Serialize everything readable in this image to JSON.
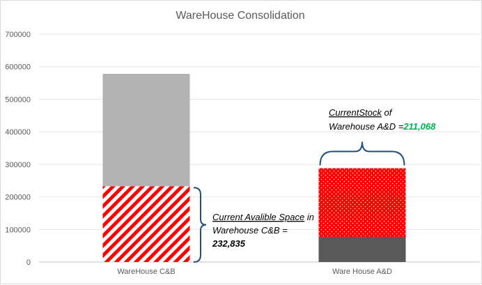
{
  "chart_data": {
    "type": "bar",
    "stacked": true,
    "title": "WareHouse Consolidation",
    "categories": [
      "WareHouse C&B",
      "Ware House A&D"
    ],
    "ylim": [
      0,
      700000
    ],
    "yticks": [
      0,
      100000,
      200000,
      300000,
      400000,
      500000,
      600000,
      700000
    ],
    "grid": true,
    "series": [
      {
        "values": [
          232835,
          0
        ],
        "color": "#ff0000",
        "pattern": "diagonal-stripes"
      },
      {
        "values": [
          0,
          77000
        ],
        "color": "#595959",
        "pattern": "solid"
      },
      {
        "values": [
          0,
          211068
        ],
        "color": "#ff0000",
        "pattern": "dots"
      },
      {
        "values": [
          345165,
          0
        ],
        "color": "#b3b3b3",
        "pattern": "solid"
      }
    ],
    "annotations": [
      {
        "target": "WareHouse C&B",
        "line1_underlined": "Current Avalible Space",
        "line1_rest": " in",
        "line2": "Warehouse C&B =",
        "value_text": "232,835",
        "value_color": "#00b050"
      },
      {
        "target": "Ware House A&D",
        "line1_underlined": "CurrentStock",
        "line1_rest": " of",
        "line2": "Warehouse A&D =",
        "value_text": "211,068",
        "value_color": "#00b050"
      }
    ],
    "bracket_color": "#1f4e79"
  }
}
